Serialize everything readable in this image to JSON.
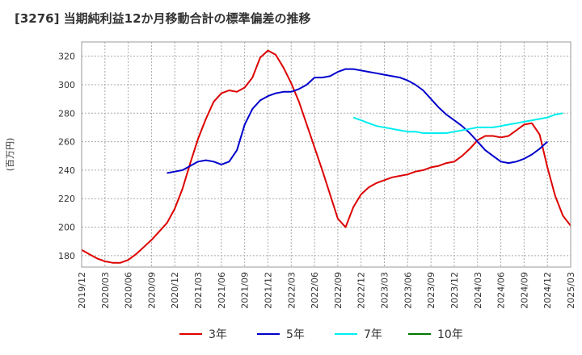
{
  "chart_data": {
    "type": "line",
    "title": "[3276]  当期純利益12か月移動合計の標準偏差の推移",
    "xlabel": "",
    "ylabel": "(百万円)",
    "ylim": [
      172,
      330
    ],
    "yticks": [
      180,
      200,
      220,
      240,
      260,
      280,
      300,
      320
    ],
    "x_start": "2019-12",
    "x_end": "2025-03",
    "xticks": [
      "2019/12",
      "2020/03",
      "2020/06",
      "2020/09",
      "2020/12",
      "2021/03",
      "2021/06",
      "2021/09",
      "2021/12",
      "2022/03",
      "2022/06",
      "2022/09",
      "2022/12",
      "2023/03",
      "2023/06",
      "2023/09",
      "2023/12",
      "2024/03",
      "2024/06",
      "2024/09",
      "2024/12",
      "2025/03"
    ],
    "grid": true,
    "legend_position": "bottom",
    "series": [
      {
        "name": "3年",
        "color": "#dd0000",
        "start": "2019-12",
        "values": [
          184,
          181,
          178,
          176,
          175,
          175,
          177,
          181,
          186,
          191,
          197,
          203,
          213,
          227,
          245,
          262,
          276,
          288,
          294,
          296,
          295,
          298,
          305,
          319,
          324,
          321,
          312,
          301,
          288,
          272,
          256,
          240,
          223,
          206,
          200,
          214,
          223,
          228,
          231,
          233,
          235,
          236,
          237,
          239,
          240,
          242,
          243,
          245,
          246,
          250,
          255,
          261,
          264,
          264,
          263,
          264,
          268,
          272,
          273,
          265,
          242,
          222,
          208,
          201
        ]
      },
      {
        "name": "5年",
        "color": "#0000cc",
        "start": "2020-11",
        "values": [
          238,
          239,
          240,
          243,
          246,
          247,
          246,
          244,
          246,
          254,
          272,
          283,
          289,
          292,
          294,
          295,
          295,
          297,
          300,
          305,
          305,
          306,
          309,
          311,
          311,
          310,
          309,
          308,
          307,
          306,
          305,
          303,
          300,
          296,
          290,
          284,
          279,
          275,
          271,
          266,
          260,
          254,
          250,
          246,
          245,
          246,
          248,
          251,
          255,
          260
        ]
      },
      {
        "name": "7年",
        "color": "#00eeee",
        "start": "2022-11",
        "values": [
          277,
          275,
          273,
          271,
          270,
          269,
          268,
          267,
          267,
          266,
          266,
          266,
          266,
          267,
          268,
          269,
          270,
          270,
          270,
          271,
          272,
          273,
          274,
          275,
          276,
          277,
          279,
          280
        ]
      },
      {
        "name": "10年",
        "color": "#007700",
        "start": "2024-12",
        "values": []
      }
    ]
  }
}
